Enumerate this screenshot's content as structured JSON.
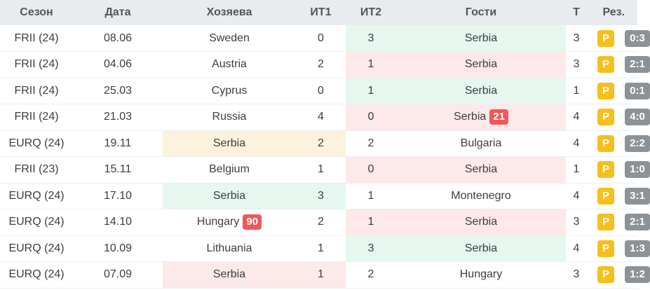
{
  "header": {
    "season": "Сезон",
    "date": "Дата",
    "home": "Хозяева",
    "it1": "ИТ1",
    "it2": "ИТ2",
    "away": "Гости",
    "t": "Т",
    "res": "Рез."
  },
  "colors": {
    "win": "#e5f7ef",
    "loss": "#fde9ea",
    "draw": "#fdf3dc",
    "badge": "#f7bf1b",
    "cards": "#f0575a",
    "score": "#8d9296"
  },
  "rows": [
    {
      "season": "FRII (24)",
      "date": "08.06",
      "home": "Sweden",
      "it1": "0",
      "it2": "3",
      "away": "Serbia",
      "t": "3",
      "badge": "P",
      "score": "0:3",
      "home_hl": "",
      "away_hl": "win",
      "it2_hl": "win",
      "cards_home": "",
      "cards_away": ""
    },
    {
      "season": "FRII (24)",
      "date": "04.06",
      "home": "Austria",
      "it1": "2",
      "it2": "1",
      "away": "Serbia",
      "t": "3",
      "badge": "P",
      "score": "2:1",
      "home_hl": "",
      "away_hl": "loss",
      "it2_hl": "loss",
      "cards_home": "",
      "cards_away": ""
    },
    {
      "season": "FRII (24)",
      "date": "25.03",
      "home": "Cyprus",
      "it1": "0",
      "it2": "1",
      "away": "Serbia",
      "t": "1",
      "badge": "P",
      "score": "0:1",
      "home_hl": "",
      "away_hl": "win",
      "it2_hl": "win",
      "cards_home": "",
      "cards_away": ""
    },
    {
      "season": "FRII (24)",
      "date": "21.03",
      "home": "Russia",
      "it1": "4",
      "it2": "0",
      "away": "Serbia",
      "t": "4",
      "badge": "P",
      "score": "4:0",
      "home_hl": "",
      "away_hl": "loss",
      "it2_hl": "loss",
      "cards_home": "",
      "cards_away": "21"
    },
    {
      "season": "EURQ (24)",
      "date": "19.11",
      "home": "Serbia",
      "it1": "2",
      "it2": "2",
      "away": "Bulgaria",
      "t": "4",
      "badge": "P",
      "score": "2:2",
      "home_hl": "draw",
      "away_hl": "",
      "it1_hl": "draw",
      "cards_home": "",
      "cards_away": ""
    },
    {
      "season": "FRII (23)",
      "date": "15.11",
      "home": "Belgium",
      "it1": "1",
      "it2": "0",
      "away": "Serbia",
      "t": "1",
      "badge": "P",
      "score": "1:0",
      "home_hl": "",
      "away_hl": "loss",
      "it2_hl": "loss",
      "cards_home": "",
      "cards_away": ""
    },
    {
      "season": "EURQ (24)",
      "date": "17.10",
      "home": "Serbia",
      "it1": "3",
      "it2": "1",
      "away": "Montenegro",
      "t": "4",
      "badge": "P",
      "score": "3:1",
      "home_hl": "win",
      "away_hl": "",
      "it1_hl": "win",
      "cards_home": "",
      "cards_away": ""
    },
    {
      "season": "EURQ (24)",
      "date": "14.10",
      "home": "Hungary",
      "it1": "2",
      "it2": "1",
      "away": "Serbia",
      "t": "3",
      "badge": "P",
      "score": "2:1",
      "home_hl": "",
      "away_hl": "loss",
      "it2_hl": "loss",
      "cards_home": "90",
      "cards_away": ""
    },
    {
      "season": "EURQ (24)",
      "date": "10.09",
      "home": "Lithuania",
      "it1": "1",
      "it2": "3",
      "away": "Serbia",
      "t": "4",
      "badge": "P",
      "score": "1:3",
      "home_hl": "",
      "away_hl": "win",
      "it2_hl": "win",
      "cards_home": "",
      "cards_away": ""
    },
    {
      "season": "EURQ (24)",
      "date": "07.09",
      "home": "Serbia",
      "it1": "1",
      "it2": "2",
      "away": "Hungary",
      "t": "3",
      "badge": "P",
      "score": "1:2",
      "home_hl": "loss",
      "away_hl": "",
      "it1_hl": "loss",
      "cards_home": "",
      "cards_away": ""
    }
  ]
}
